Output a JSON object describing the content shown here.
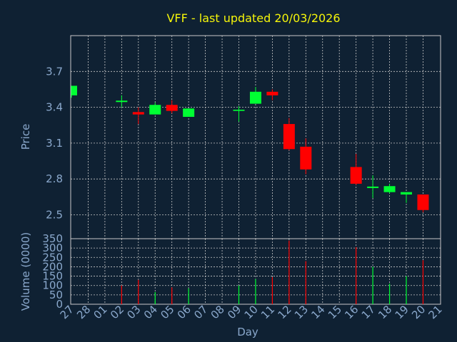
{
  "chart_data": [
    {
      "type": "candlestick",
      "title": "VFF - last updated 20/03/2026",
      "ylabel": "Price",
      "ylim": [
        2.3,
        4.0
      ],
      "yticks": [
        2.5,
        2.8,
        3.1,
        3.4,
        3.7
      ],
      "categories": [
        "27",
        "28",
        "01",
        "02",
        "03",
        "04",
        "05",
        "06",
        "07",
        "08",
        "09",
        "10",
        "11",
        "12",
        "13",
        "14",
        "15",
        "16",
        "17",
        "18",
        "19",
        "20",
        "21"
      ],
      "candles": [
        {
          "day": "27",
          "open": 3.5,
          "high": 3.58,
          "low": 3.48,
          "close": 3.58
        },
        {
          "day": "02",
          "open": 3.45,
          "high": 3.5,
          "low": 3.4,
          "close": 3.45
        },
        {
          "day": "03",
          "open": 3.36,
          "high": 3.4,
          "low": 3.26,
          "close": 3.34
        },
        {
          "day": "04",
          "open": 3.34,
          "high": 3.44,
          "low": 3.34,
          "close": 3.42
        },
        {
          "day": "05",
          "open": 3.42,
          "high": 3.46,
          "low": 3.35,
          "close": 3.37
        },
        {
          "day": "06",
          "open": 3.32,
          "high": 3.39,
          "low": 3.32,
          "close": 3.39
        },
        {
          "day": "09",
          "open": 3.37,
          "high": 3.41,
          "low": 3.28,
          "close": 3.38
        },
        {
          "day": "10",
          "open": 3.43,
          "high": 3.57,
          "low": 3.43,
          "close": 3.53
        },
        {
          "day": "11",
          "open": 3.53,
          "high": 3.55,
          "low": 3.46,
          "close": 3.5
        },
        {
          "day": "12",
          "open": 3.26,
          "high": 3.31,
          "low": 3.04,
          "close": 3.05
        },
        {
          "day": "13",
          "open": 3.07,
          "high": 3.14,
          "low": 2.84,
          "close": 2.88
        },
        {
          "day": "16",
          "open": 2.9,
          "high": 3.01,
          "low": 2.75,
          "close": 2.76
        },
        {
          "day": "17",
          "open": 2.73,
          "high": 2.83,
          "low": 2.64,
          "close": 2.73
        },
        {
          "day": "18",
          "open": 2.69,
          "high": 2.76,
          "low": 2.68,
          "close": 2.74
        },
        {
          "day": "19",
          "open": 2.67,
          "high": 2.69,
          "low": 2.6,
          "close": 2.69
        },
        {
          "day": "20",
          "open": 2.67,
          "high": 2.67,
          "low": 2.52,
          "close": 2.54
        }
      ],
      "up_color": "#00ff33",
      "down_color": "#ff0000"
    },
    {
      "type": "bar",
      "ylabel": "Volume (0000)",
      "xlabel": "Day",
      "ylim": [
        0,
        350
      ],
      "yticks": [
        0,
        50,
        100,
        150,
        200,
        250,
        300,
        350
      ],
      "categories": [
        "27",
        "28",
        "01",
        "02",
        "03",
        "04",
        "05",
        "06",
        "07",
        "08",
        "09",
        "10",
        "11",
        "12",
        "13",
        "14",
        "15",
        "16",
        "17",
        "18",
        "19",
        "20",
        "21"
      ],
      "bars": [
        {
          "day": "27",
          "value": 0,
          "direction": "up"
        },
        {
          "day": "02",
          "value": 100,
          "direction": "down"
        },
        {
          "day": "03",
          "value": 130,
          "direction": "down"
        },
        {
          "day": "04",
          "value": 65,
          "direction": "up"
        },
        {
          "day": "05",
          "value": 90,
          "direction": "down"
        },
        {
          "day": "06",
          "value": 85,
          "direction": "up"
        },
        {
          "day": "09",
          "value": 100,
          "direction": "up"
        },
        {
          "day": "10",
          "value": 135,
          "direction": "up"
        },
        {
          "day": "11",
          "value": 145,
          "direction": "down"
        },
        {
          "day": "12",
          "value": 340,
          "direction": "down"
        },
        {
          "day": "13",
          "value": 230,
          "direction": "down"
        },
        {
          "day": "16",
          "value": 305,
          "direction": "down"
        },
        {
          "day": "17",
          "value": 200,
          "direction": "up"
        },
        {
          "day": "18",
          "value": 110,
          "direction": "up"
        },
        {
          "day": "19",
          "value": 150,
          "direction": "up"
        },
        {
          "day": "20",
          "value": 235,
          "direction": "down"
        }
      ]
    }
  ],
  "colors": {
    "background": "#0f2133",
    "plot_border": "#c8c8c8",
    "grid": "#c8c8c8",
    "axis_text": "#8aa8cc",
    "title": "#f5f50a"
  }
}
